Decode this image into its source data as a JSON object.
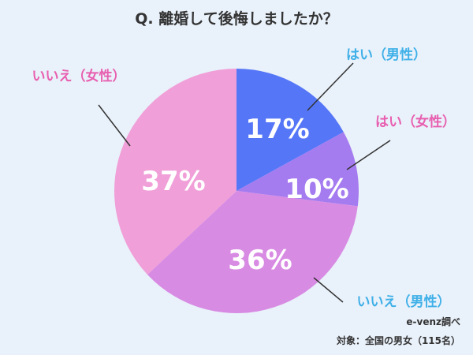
{
  "chart_data": {
    "type": "pie",
    "title": "Q. 離婚して後悔しましたか？",
    "slices": [
      {
        "label": "はい（男性）",
        "value": 17,
        "value_label": "17%",
        "color": "#5576f7",
        "label_color": "#3fb0e8"
      },
      {
        "label": "はい（女性）",
        "value": 10,
        "value_label": "10%",
        "color": "#a57cf0",
        "label_color": "#e85fb0"
      },
      {
        "label": "いいえ（男性）",
        "value": 36,
        "value_label": "36%",
        "color": "#d88be3",
        "label_color": "#3fb0e8"
      },
      {
        "label": "いいえ（女性）",
        "value": 37,
        "value_label": "37%",
        "color": "#f09fd8",
        "label_color": "#e85fb0"
      }
    ],
    "source": "e-venz調べ",
    "subject": "対象：全国の男女（115名）"
  }
}
